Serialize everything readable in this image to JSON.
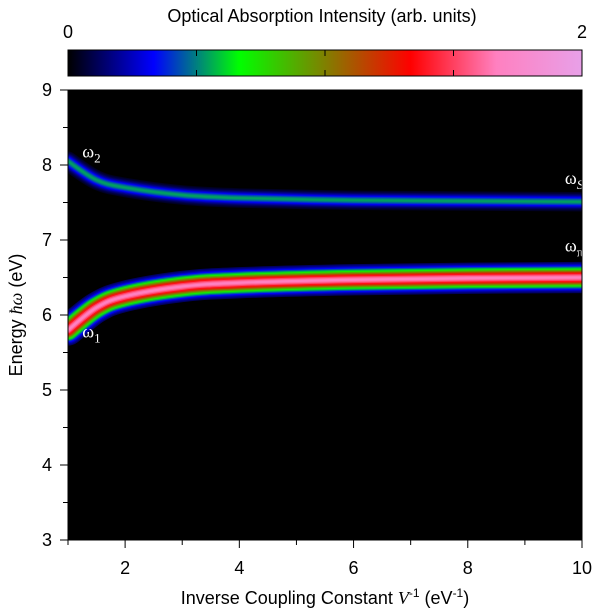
{
  "chart_data": {
    "type": "heatmap",
    "colorbar": {
      "title": "Optical Absorption Intensity (arb. units)",
      "min_label": "0",
      "max_label": "2",
      "range": [
        0,
        2
      ],
      "colormap": [
        "#000000",
        "#0000ff",
        "#00ff00",
        "#808000",
        "#ff0000",
        "#ff80c0",
        "#e8a0e8"
      ]
    },
    "x_axis": {
      "label_prefix": "Inverse Coupling Constant ",
      "label_var": "V",
      "label_sup": "-1",
      "label_unit_open": " (eV",
      "label_unit_sup": "-1",
      "label_unit_close": ")",
      "range": [
        1,
        10
      ],
      "ticks": [
        "2",
        "4",
        "6",
        "8",
        "10"
      ]
    },
    "y_axis": {
      "label_prefix": "Energy ",
      "label_var": "ħω",
      "label_unit": " (eV)",
      "range": [
        3,
        9
      ],
      "ticks": [
        "3",
        "4",
        "5",
        "6",
        "7",
        "8",
        "9"
      ]
    },
    "bands": [
      {
        "x": [
          1,
          1.5,
          2,
          3,
          4,
          6,
          8,
          10
        ],
        "y": [
          8.05,
          7.8,
          7.7,
          7.6,
          7.56,
          7.53,
          7.52,
          7.51
        ],
        "peak_intensity": 0.55,
        "width_ev": 0.05
      },
      {
        "x": [
          1,
          1.5,
          2,
          3,
          4,
          6,
          8,
          10
        ],
        "y": [
          5.8,
          6.1,
          6.25,
          6.38,
          6.43,
          6.47,
          6.49,
          6.5
        ],
        "peak_intensity": 1.7,
        "width_ev": 0.08
      }
    ],
    "annotations": [
      {
        "id": "omega-2",
        "base": "ω",
        "sub": "2",
        "x": 1.25,
        "y": 8.1
      },
      {
        "id": "omega-1",
        "base": "ω",
        "sub": "1",
        "x": 1.25,
        "y": 5.7
      },
      {
        "id": "omega-s",
        "base": "ω",
        "sub": "S",
        "x": 9.7,
        "y": 7.75
      },
      {
        "id": "omega-pi",
        "base": "ω",
        "sub": "π",
        "x": 9.7,
        "y": 6.85
      }
    ]
  }
}
